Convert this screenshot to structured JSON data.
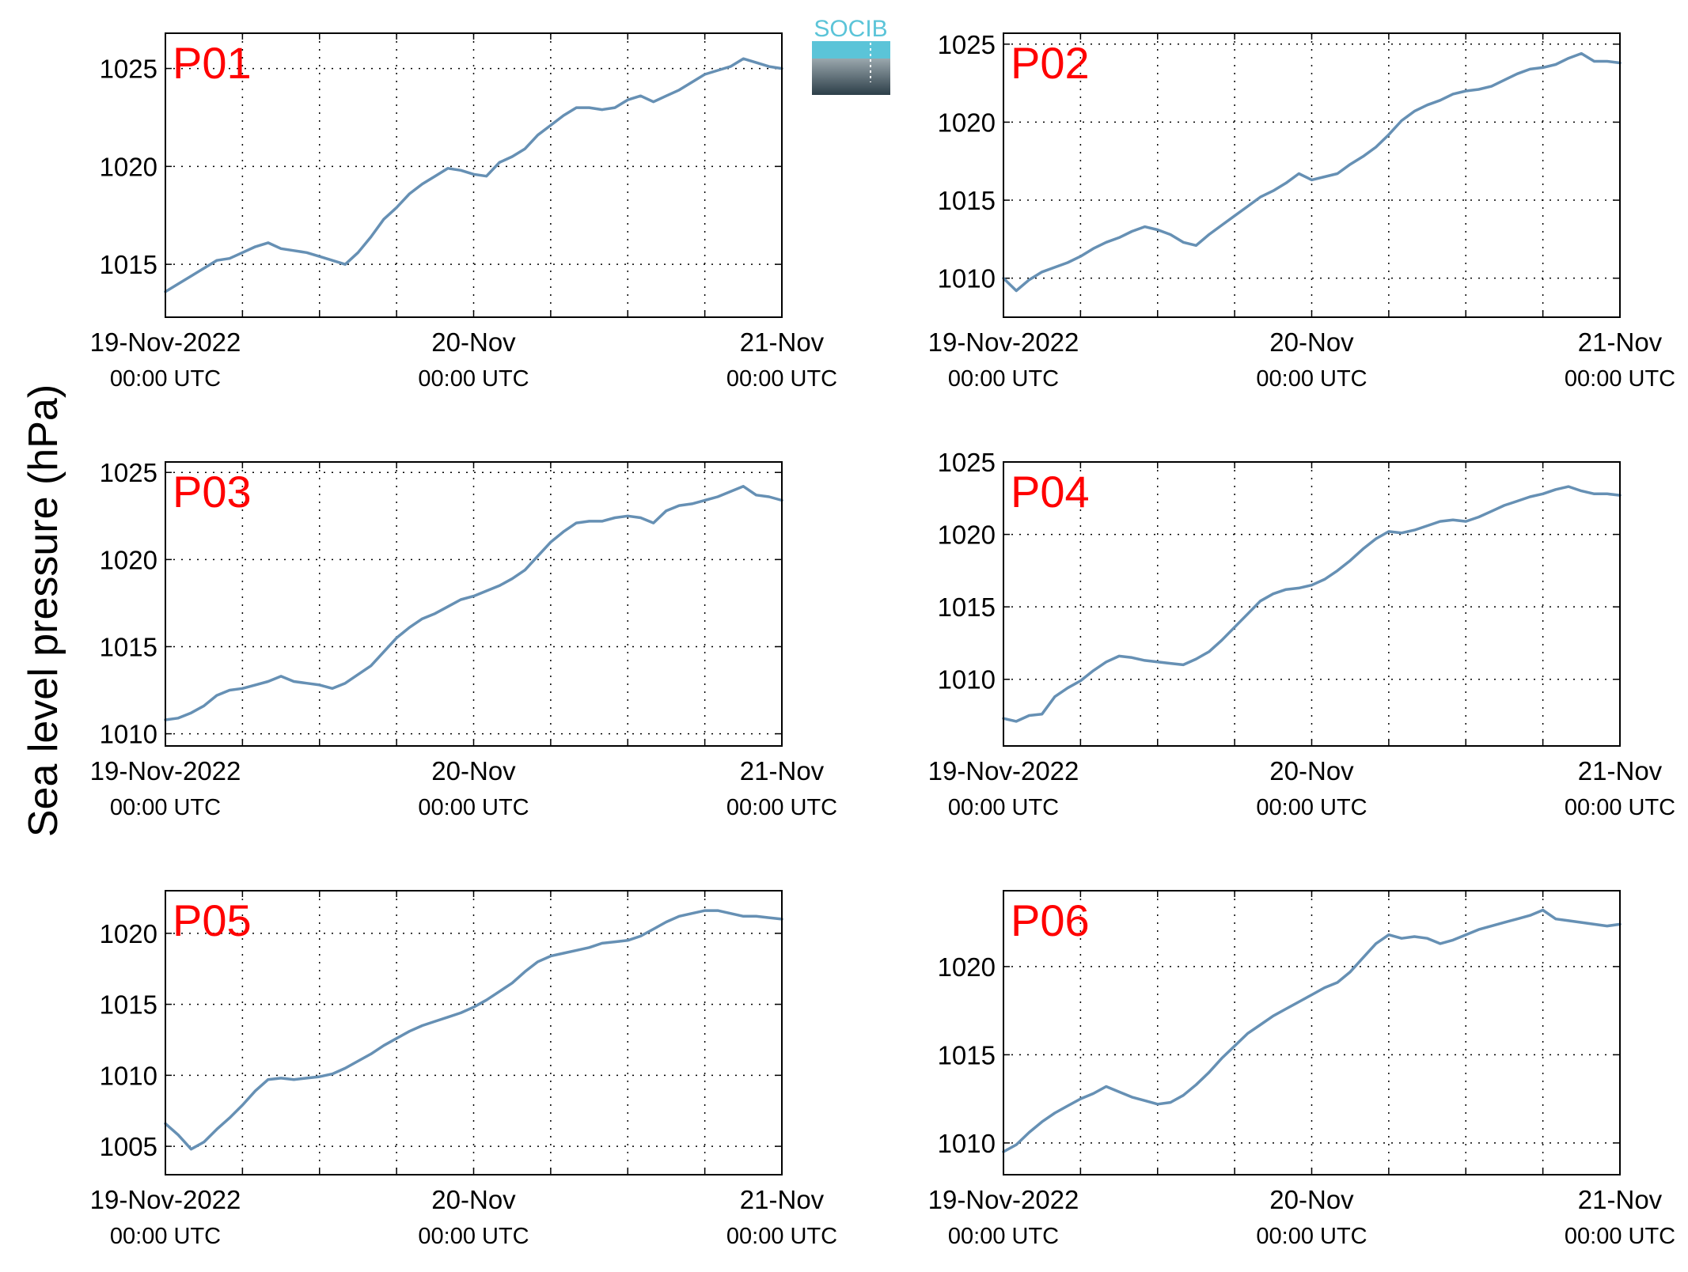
{
  "ylabel": "Sea level pressure (hPa)",
  "logo": {
    "text": "SOCIB",
    "colors": [
      "#5bc4d8",
      "#9aa7ad",
      "#2c3e48"
    ]
  },
  "line_color": "#6690b4",
  "label_color": "#ff0000",
  "chart_data": [
    {
      "type": "line",
      "panel": "P01",
      "xticks": [
        {
          "main": "19-Nov-2022",
          "sub": "00:00 UTC"
        },
        {
          "main": "20-Nov",
          "sub": "00:00 UTC"
        },
        {
          "main": "21-Nov",
          "sub": "00:00 UTC"
        }
      ],
      "xlim": [
        0,
        48
      ],
      "ylim": [
        1012.3,
        1026.8
      ],
      "yticks": [
        1015,
        1020,
        1025
      ],
      "grid": true,
      "x": [
        0,
        1,
        2,
        3,
        4,
        5,
        6,
        7,
        8,
        9,
        10,
        11,
        12,
        13,
        14,
        15,
        16,
        17,
        18,
        19,
        20,
        21,
        22,
        23,
        24,
        25,
        26,
        27,
        28,
        29,
        30,
        31,
        32,
        33,
        34,
        35,
        36,
        37,
        38,
        39,
        40,
        41,
        42,
        43,
        44,
        45,
        46,
        47,
        48
      ],
      "y": [
        1013.6,
        1014.0,
        1014.4,
        1014.8,
        1015.2,
        1015.3,
        1015.6,
        1015.9,
        1016.1,
        1015.8,
        1015.7,
        1015.6,
        1015.4,
        1015.2,
        1015.0,
        1015.6,
        1016.4,
        1017.3,
        1017.9,
        1018.6,
        1019.1,
        1019.5,
        1019.9,
        1019.8,
        1019.6,
        1019.5,
        1020.2,
        1020.5,
        1020.9,
        1021.6,
        1022.1,
        1022.6,
        1023.0,
        1023.0,
        1022.9,
        1023.0,
        1023.4,
        1023.6,
        1023.3,
        1023.6,
        1023.9,
        1024.3,
        1024.7,
        1024.9,
        1025.1,
        1025.5,
        1025.3,
        1025.1,
        1025.0
      ]
    },
    {
      "type": "line",
      "panel": "P02",
      "xticks": [
        {
          "main": "19-Nov-2022",
          "sub": "00:00 UTC"
        },
        {
          "main": "20-Nov",
          "sub": "00:00 UTC"
        },
        {
          "main": "21-Nov",
          "sub": "00:00 UTC"
        }
      ],
      "xlim": [
        0,
        48
      ],
      "ylim": [
        1007.5,
        1025.7
      ],
      "yticks": [
        1010,
        1015,
        1020,
        1025
      ],
      "grid": true,
      "x": [
        0,
        1,
        2,
        3,
        4,
        5,
        6,
        7,
        8,
        9,
        10,
        11,
        12,
        13,
        14,
        15,
        16,
        17,
        18,
        19,
        20,
        21,
        22,
        23,
        24,
        25,
        26,
        27,
        28,
        29,
        30,
        31,
        32,
        33,
        34,
        35,
        36,
        37,
        38,
        39,
        40,
        41,
        42,
        43,
        44,
        45,
        46,
        47,
        48
      ],
      "y": [
        1010.0,
        1009.2,
        1009.9,
        1010.4,
        1010.7,
        1011.0,
        1011.4,
        1011.9,
        1012.3,
        1012.6,
        1013.0,
        1013.3,
        1013.1,
        1012.8,
        1012.3,
        1012.1,
        1012.8,
        1013.4,
        1014.0,
        1014.6,
        1015.2,
        1015.6,
        1016.1,
        1016.7,
        1016.3,
        1016.5,
        1016.7,
        1017.3,
        1017.8,
        1018.4,
        1019.2,
        1020.1,
        1020.7,
        1021.1,
        1021.4,
        1021.8,
        1022.0,
        1022.1,
        1022.3,
        1022.7,
        1023.1,
        1023.4,
        1023.5,
        1023.7,
        1024.1,
        1024.4,
        1023.9,
        1023.9,
        1023.8
      ]
    },
    {
      "type": "line",
      "panel": "P03",
      "xticks": [
        {
          "main": "19-Nov-2022",
          "sub": "00:00 UTC"
        },
        {
          "main": "20-Nov",
          "sub": "00:00 UTC"
        },
        {
          "main": "21-Nov",
          "sub": "00:00 UTC"
        }
      ],
      "xlim": [
        0,
        48
      ],
      "ylim": [
        1009.3,
        1025.6
      ],
      "yticks": [
        1010,
        1015,
        1020,
        1025
      ],
      "grid": true,
      "x": [
        0,
        1,
        2,
        3,
        4,
        5,
        6,
        7,
        8,
        9,
        10,
        11,
        12,
        13,
        14,
        15,
        16,
        17,
        18,
        19,
        20,
        21,
        22,
        23,
        24,
        25,
        26,
        27,
        28,
        29,
        30,
        31,
        32,
        33,
        34,
        35,
        36,
        37,
        38,
        39,
        40,
        41,
        42,
        43,
        44,
        45,
        46,
        47,
        48
      ],
      "y": [
        1010.8,
        1010.9,
        1011.2,
        1011.6,
        1012.2,
        1012.5,
        1012.6,
        1012.8,
        1013.0,
        1013.3,
        1013.0,
        1012.9,
        1012.8,
        1012.6,
        1012.9,
        1013.4,
        1013.9,
        1014.7,
        1015.5,
        1016.1,
        1016.6,
        1016.9,
        1017.3,
        1017.7,
        1017.9,
        1018.2,
        1018.5,
        1018.9,
        1019.4,
        1020.2,
        1021.0,
        1021.6,
        1022.1,
        1022.2,
        1022.2,
        1022.4,
        1022.5,
        1022.4,
        1022.1,
        1022.8,
        1023.1,
        1023.2,
        1023.4,
        1023.6,
        1023.9,
        1024.2,
        1023.7,
        1023.6,
        1023.4
      ]
    },
    {
      "type": "line",
      "panel": "P04",
      "xticks": [
        {
          "main": "19-Nov-2022",
          "sub": "00:00 UTC"
        },
        {
          "main": "20-Nov",
          "sub": "00:00 UTC"
        },
        {
          "main": "21-Nov",
          "sub": "00:00 UTC"
        }
      ],
      "xlim": [
        0,
        48
      ],
      "ylim": [
        1005.4,
        1025.0
      ],
      "yticks": [
        1010,
        1015,
        1020,
        1025
      ],
      "grid": true,
      "x": [
        0,
        1,
        2,
        3,
        4,
        5,
        6,
        7,
        8,
        9,
        10,
        11,
        12,
        13,
        14,
        15,
        16,
        17,
        18,
        19,
        20,
        21,
        22,
        23,
        24,
        25,
        26,
        27,
        28,
        29,
        30,
        31,
        32,
        33,
        34,
        35,
        36,
        37,
        38,
        39,
        40,
        41,
        42,
        43,
        44,
        45,
        46,
        47,
        48
      ],
      "y": [
        1007.3,
        1007.1,
        1007.5,
        1007.6,
        1008.8,
        1009.4,
        1009.9,
        1010.6,
        1011.2,
        1011.6,
        1011.5,
        1011.3,
        1011.2,
        1011.1,
        1011.0,
        1011.4,
        1011.9,
        1012.7,
        1013.6,
        1014.5,
        1015.4,
        1015.9,
        1016.2,
        1016.3,
        1016.5,
        1016.9,
        1017.5,
        1018.2,
        1019.0,
        1019.7,
        1020.2,
        1020.1,
        1020.3,
        1020.6,
        1020.9,
        1021.0,
        1020.9,
        1021.2,
        1021.6,
        1022.0,
        1022.3,
        1022.6,
        1022.8,
        1023.1,
        1023.3,
        1023.0,
        1022.8,
        1022.8,
        1022.7
      ]
    },
    {
      "type": "line",
      "panel": "P05",
      "xticks": [
        {
          "main": "19-Nov-2022",
          "sub": "00:00 UTC"
        },
        {
          "main": "20-Nov",
          "sub": "00:00 UTC"
        },
        {
          "main": "21-Nov",
          "sub": "00:00 UTC"
        }
      ],
      "xlim": [
        0,
        48
      ],
      "ylim": [
        1003.0,
        1023.0
      ],
      "yticks": [
        1005,
        1010,
        1015,
        1020
      ],
      "grid": true,
      "x": [
        0,
        1,
        2,
        3,
        4,
        5,
        6,
        7,
        8,
        9,
        10,
        11,
        12,
        13,
        14,
        15,
        16,
        17,
        18,
        19,
        20,
        21,
        22,
        23,
        24,
        25,
        26,
        27,
        28,
        29,
        30,
        31,
        32,
        33,
        34,
        35,
        36,
        37,
        38,
        39,
        40,
        41,
        42,
        43,
        44,
        45,
        46,
        47,
        48
      ],
      "y": [
        1006.6,
        1005.8,
        1004.8,
        1005.3,
        1006.2,
        1007.0,
        1007.9,
        1008.9,
        1009.7,
        1009.8,
        1009.7,
        1009.8,
        1009.9,
        1010.1,
        1010.5,
        1011.0,
        1011.5,
        1012.1,
        1012.6,
        1013.1,
        1013.5,
        1013.8,
        1014.1,
        1014.4,
        1014.8,
        1015.3,
        1015.9,
        1016.5,
        1017.3,
        1018.0,
        1018.4,
        1018.6,
        1018.8,
        1019.0,
        1019.3,
        1019.4,
        1019.5,
        1019.8,
        1020.3,
        1020.8,
        1021.2,
        1021.4,
        1021.6,
        1021.6,
        1021.4,
        1021.2,
        1021.2,
        1021.1,
        1021.0
      ]
    },
    {
      "type": "line",
      "panel": "P06",
      "xticks": [
        {
          "main": "19-Nov-2022",
          "sub": "00:00 UTC"
        },
        {
          "main": "20-Nov",
          "sub": "00:00 UTC"
        },
        {
          "main": "21-Nov",
          "sub": "00:00 UTC"
        }
      ],
      "xlim": [
        0,
        48
      ],
      "ylim": [
        1008.2,
        1024.3
      ],
      "yticks": [
        1010,
        1015,
        1020
      ],
      "grid": true,
      "x": [
        0,
        1,
        2,
        3,
        4,
        5,
        6,
        7,
        8,
        9,
        10,
        11,
        12,
        13,
        14,
        15,
        16,
        17,
        18,
        19,
        20,
        21,
        22,
        23,
        24,
        25,
        26,
        27,
        28,
        29,
        30,
        31,
        32,
        33,
        34,
        35,
        36,
        37,
        38,
        39,
        40,
        41,
        42,
        43,
        44,
        45,
        46,
        47,
        48
      ],
      "y": [
        1009.5,
        1009.9,
        1010.6,
        1011.2,
        1011.7,
        1012.1,
        1012.5,
        1012.8,
        1013.2,
        1012.9,
        1012.6,
        1012.4,
        1012.2,
        1012.3,
        1012.7,
        1013.3,
        1014.0,
        1014.8,
        1015.5,
        1016.2,
        1016.7,
        1017.2,
        1017.6,
        1018.0,
        1018.4,
        1018.8,
        1019.1,
        1019.7,
        1020.5,
        1021.3,
        1021.8,
        1021.6,
        1021.7,
        1021.6,
        1021.3,
        1021.5,
        1021.8,
        1022.1,
        1022.3,
        1022.5,
        1022.7,
        1022.9,
        1023.2,
        1022.7,
        1022.6,
        1022.5,
        1022.4,
        1022.3,
        1022.4
      ]
    }
  ]
}
